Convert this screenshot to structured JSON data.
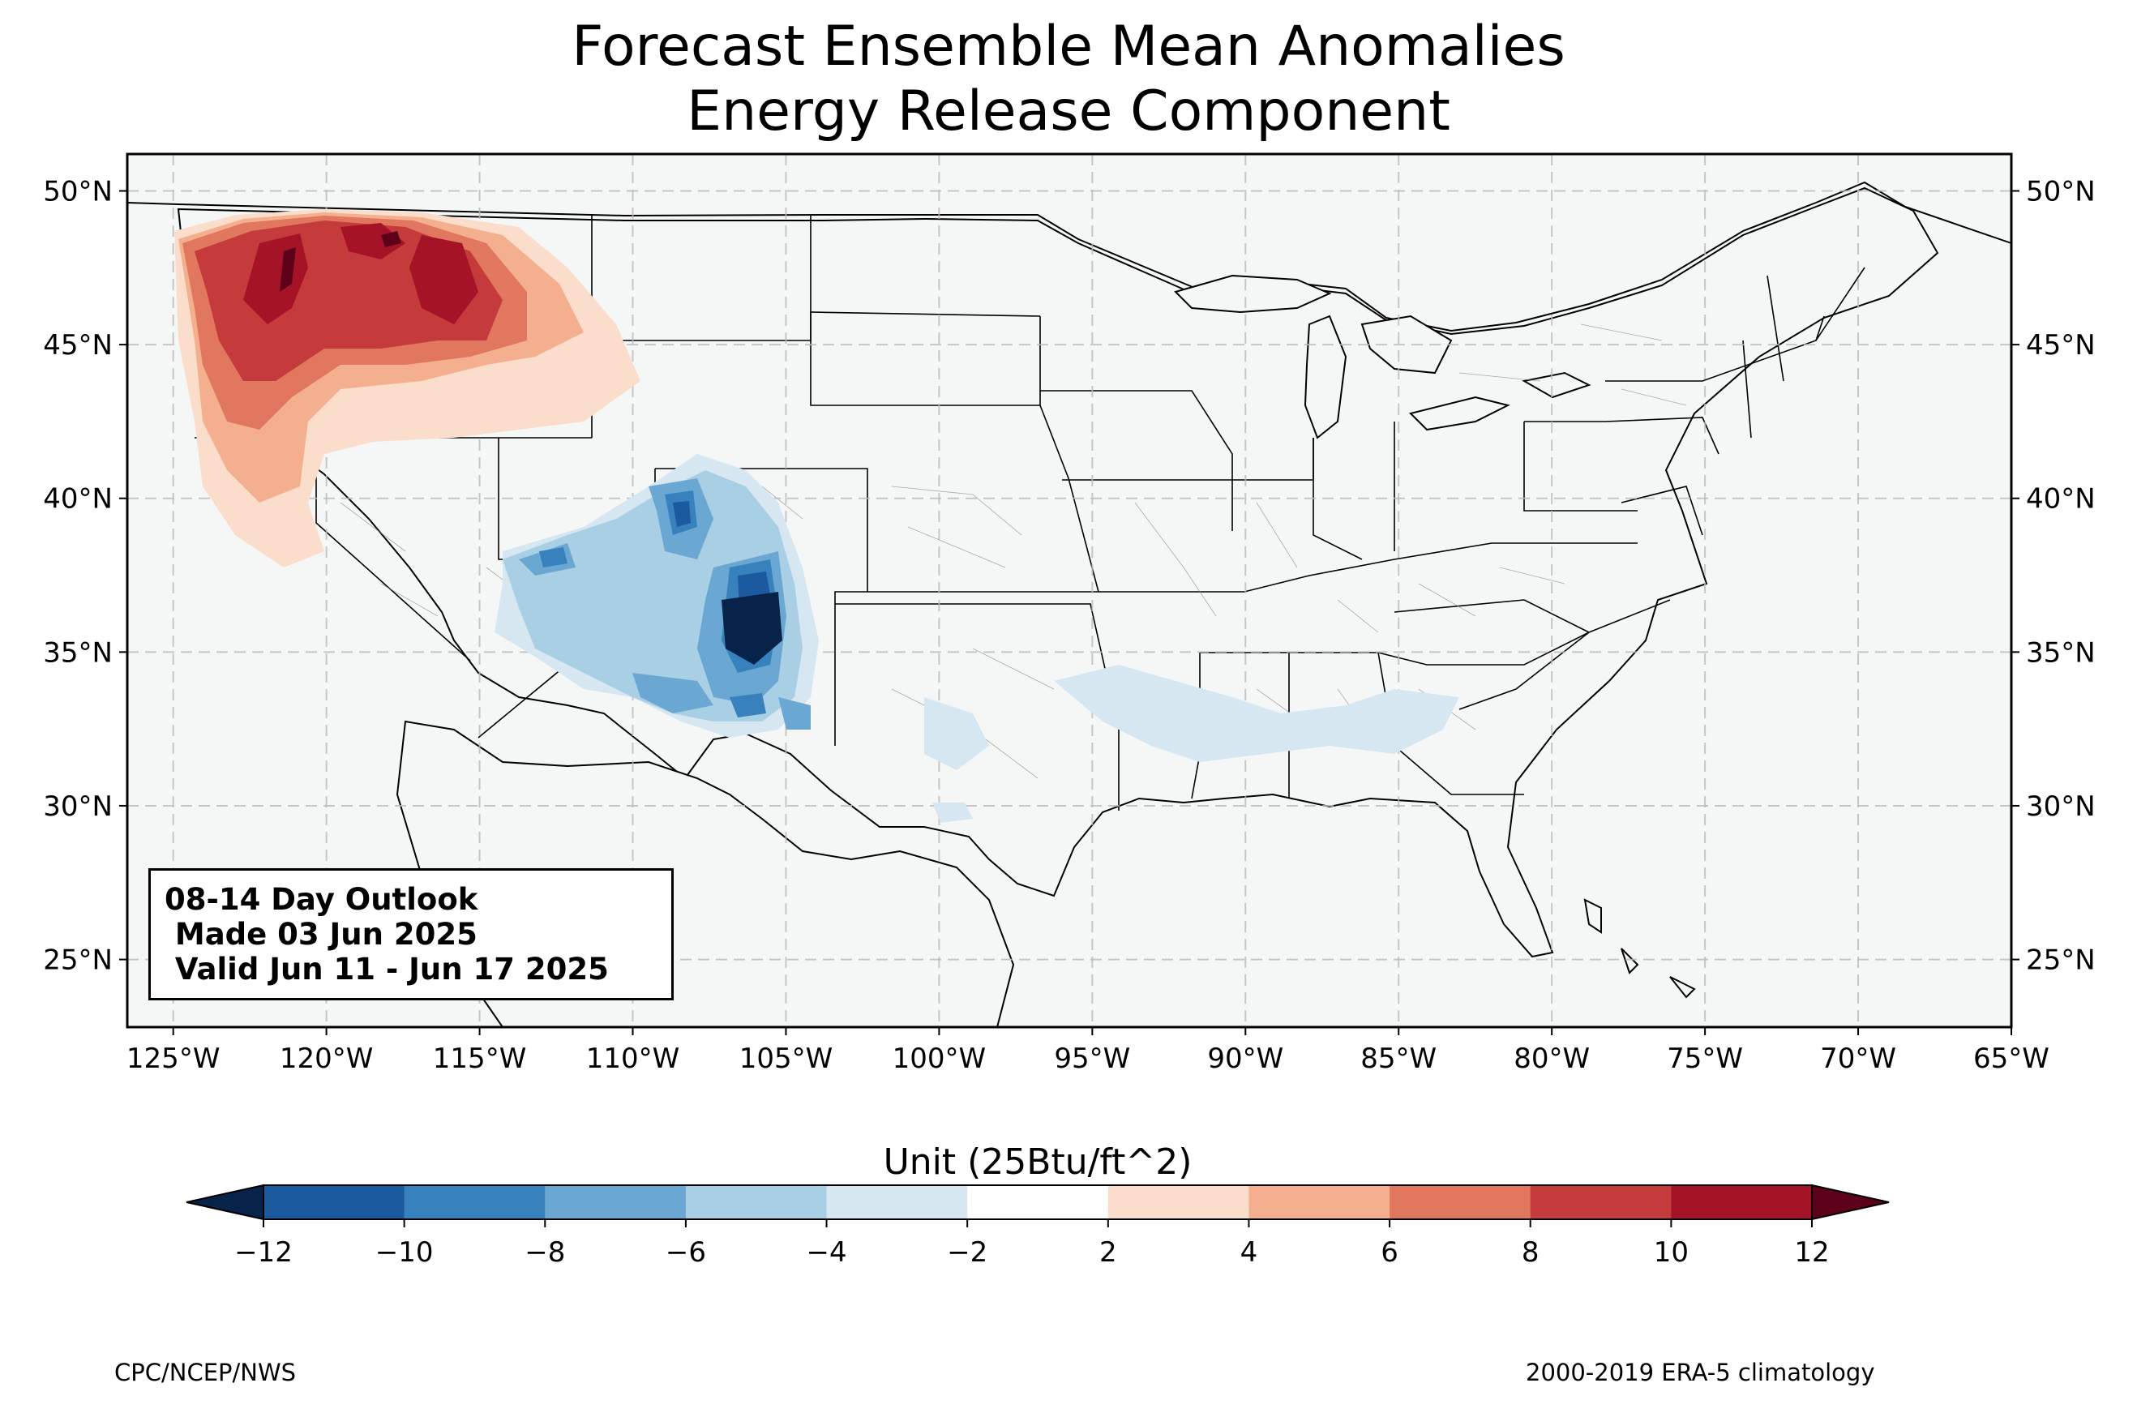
{
  "title": {
    "line1": "Forecast Ensemble Mean Anomalies",
    "line2": "Energy Release Component"
  },
  "map": {
    "lon_range": [
      -126.5,
      -65
    ],
    "lat_range": [
      22.8,
      51.2
    ],
    "lon_ticks": [
      "125°W",
      "120°W",
      "115°W",
      "110°W",
      "105°W",
      "100°W",
      "95°W",
      "90°W",
      "85°W",
      "80°W",
      "75°W",
      "70°W",
      "65°W"
    ],
    "lat_ticks": [
      "50°N",
      "45°N",
      "40°N",
      "35°N",
      "30°N",
      "25°N"
    ],
    "gridlines": true,
    "background_color": "#f5f7f7"
  },
  "outlook_box": {
    "line1": "08-14 Day Outlook",
    "line2": " Made 03 Jun 2025",
    "line3": " Valid Jun 11 - Jun 17 2025"
  },
  "colorbar": {
    "title": "Unit (25Btu/ft^2)",
    "ticks": [
      "−12",
      "−10",
      "−8",
      "−6",
      "−4",
      "−2",
      "2",
      "4",
      "6",
      "8",
      "10",
      "12"
    ],
    "extend_low_color": "#08234a",
    "extend_high_color": "#5d0019",
    "colors": [
      "#1c5a9f",
      "#3781bc",
      "#6aa7d2",
      "#a8cfe4",
      "#d6e7f1",
      "#ffffff",
      "#fbddcc",
      "#f3af8e",
      "#e0775e",
      "#c53a3a",
      "#a41426"
    ]
  },
  "footer": {
    "left": "CPC/NCEP/NWS",
    "right": "2000-2019 ERA-5 climatology"
  }
}
